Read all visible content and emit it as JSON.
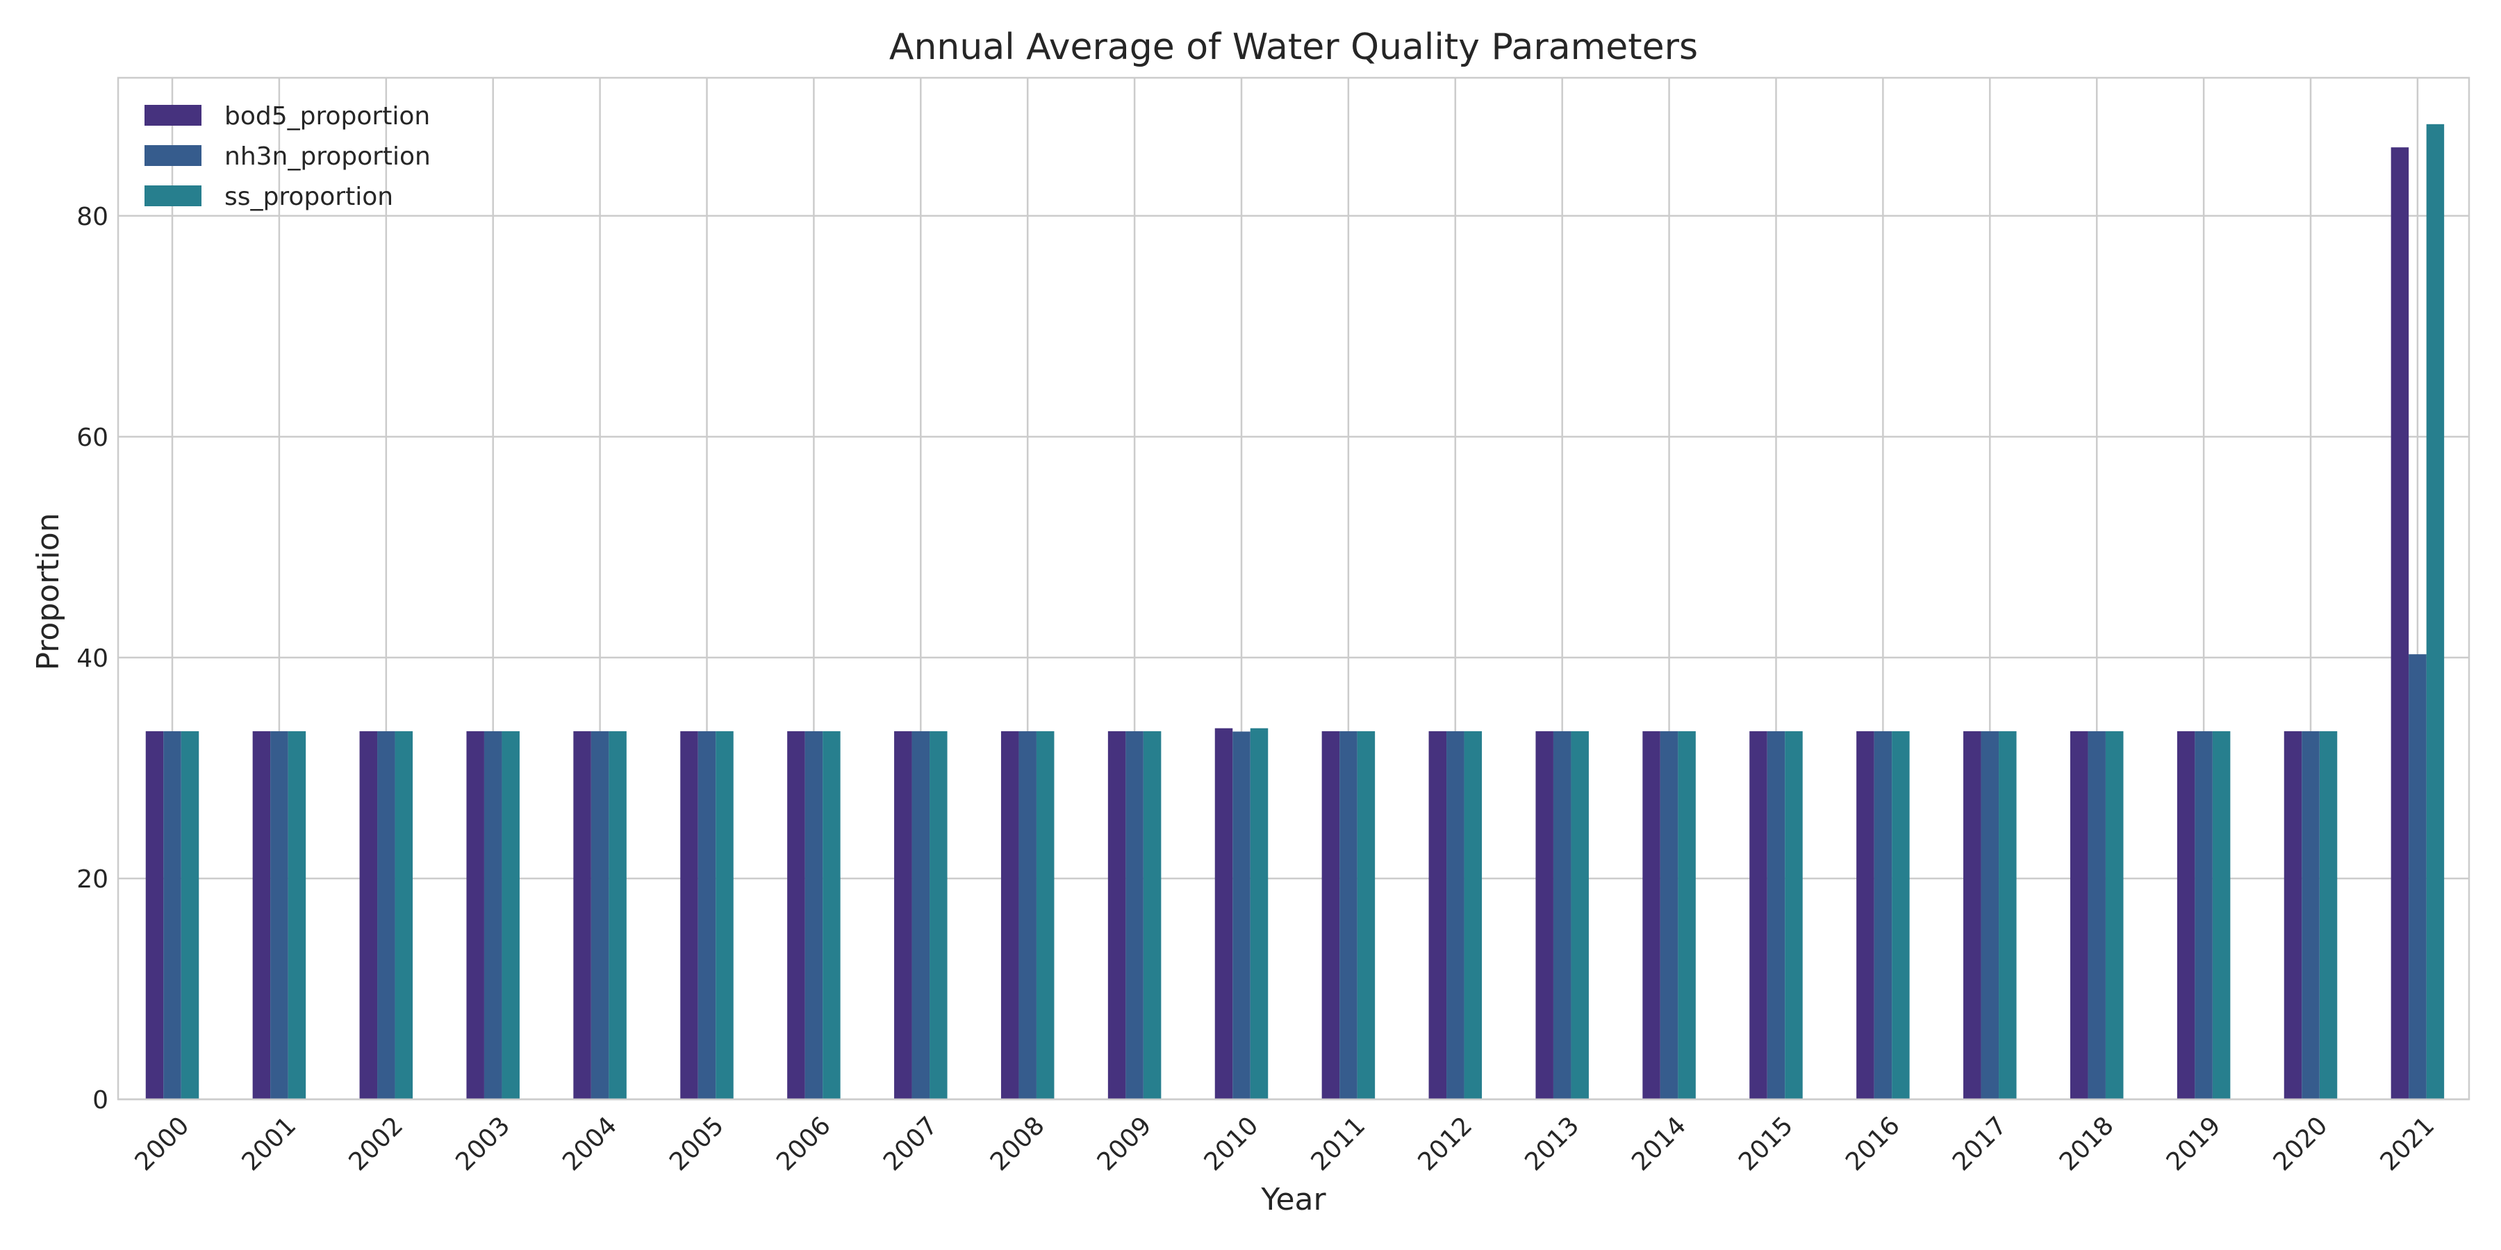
{
  "chart_data": {
    "type": "bar",
    "title": "Annual Average of Water Quality Parameters",
    "xlabel": "Year",
    "ylabel": "Proportion",
    "categories": [
      "2000",
      "2001",
      "2002",
      "2003",
      "2004",
      "2005",
      "2006",
      "2007",
      "2008",
      "2009",
      "2010",
      "2011",
      "2012",
      "2013",
      "2014",
      "2015",
      "2016",
      "2017",
      "2018",
      "2019",
      "2020",
      "2021"
    ],
    "series": [
      {
        "name": "bod5_proportion",
        "color": "#46327e",
        "values": [
          33.33,
          33.33,
          33.33,
          33.33,
          33.33,
          33.33,
          33.33,
          33.33,
          33.33,
          33.33,
          33.6,
          33.33,
          33.33,
          33.33,
          33.33,
          33.33,
          33.33,
          33.33,
          33.33,
          33.33,
          33.33,
          86.2
        ]
      },
      {
        "name": "nh3n_proportion",
        "color": "#365c8d",
        "values": [
          33.33,
          33.33,
          33.33,
          33.33,
          33.33,
          33.33,
          33.33,
          33.33,
          33.33,
          33.33,
          33.3,
          33.33,
          33.33,
          33.33,
          33.33,
          33.33,
          33.33,
          33.33,
          33.33,
          33.33,
          33.33,
          40.3
        ]
      },
      {
        "name": "ss_proportion",
        "color": "#277f8e",
        "values": [
          33.33,
          33.33,
          33.33,
          33.33,
          33.33,
          33.33,
          33.33,
          33.33,
          33.33,
          33.33,
          33.6,
          33.33,
          33.33,
          33.33,
          33.33,
          33.33,
          33.33,
          33.33,
          33.33,
          33.33,
          33.33,
          88.3
        ]
      }
    ],
    "ylim": [
      0,
      92.5
    ],
    "yticks": [
      0,
      20,
      40,
      60,
      80
    ],
    "grid": true,
    "legend_position": "top-left"
  }
}
